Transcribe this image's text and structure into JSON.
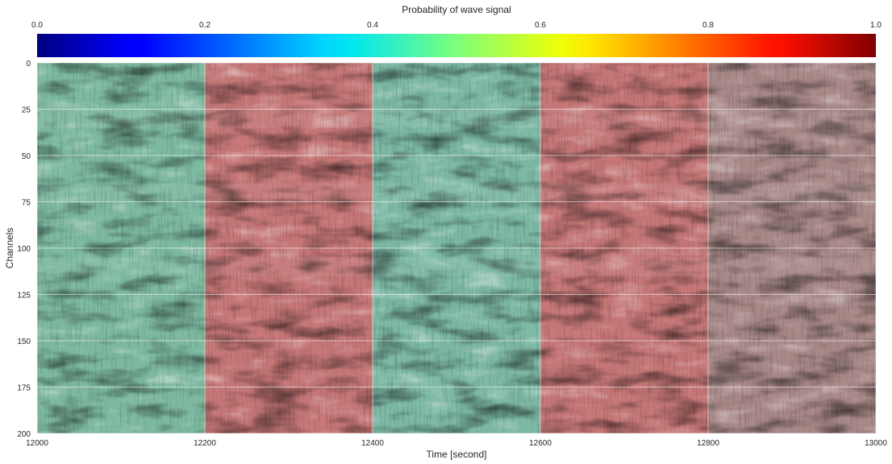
{
  "chart_data": {
    "type": "heatmap",
    "title": "Probability of wave signal",
    "xlabel": "Time [second]",
    "ylabel": "Channels",
    "xlim": [
      12000,
      13000
    ],
    "ylim": [
      200,
      0
    ],
    "xticks": [
      "12000",
      "12200",
      "12400",
      "12600",
      "12800",
      "13000"
    ],
    "yticks": [
      "0",
      "25",
      "50",
      "75",
      "100",
      "125",
      "150",
      "175",
      "200"
    ],
    "grid": true,
    "colorbar": {
      "colormap": "jet",
      "location": "top",
      "range": [
        0,
        1
      ],
      "ticks": [
        "0.0",
        "0.2",
        "0.4",
        "0.6",
        "0.8",
        "1.0"
      ]
    },
    "segments": [
      {
        "x_start": 12000,
        "x_end": 12200,
        "probability": 0.45,
        "overlay_color": "#63ad8e"
      },
      {
        "x_start": 12200,
        "x_end": 12400,
        "probability": 0.9,
        "overlay_color": "#c0585a"
      },
      {
        "x_start": 12400,
        "x_end": 12600,
        "probability": 0.45,
        "overlay_color": "#63ad95"
      },
      {
        "x_start": 12600,
        "x_end": 12800,
        "probability": 0.9,
        "overlay_color": "#c0585a"
      },
      {
        "x_start": 12800,
        "x_end": 13000,
        "probability": 0.98,
        "overlay_color": "#9a6f6f"
      }
    ],
    "bright_event_bands_channels": [
      [
        25,
        35
      ],
      [
        65,
        75
      ],
      [
        105,
        115
      ]
    ]
  }
}
